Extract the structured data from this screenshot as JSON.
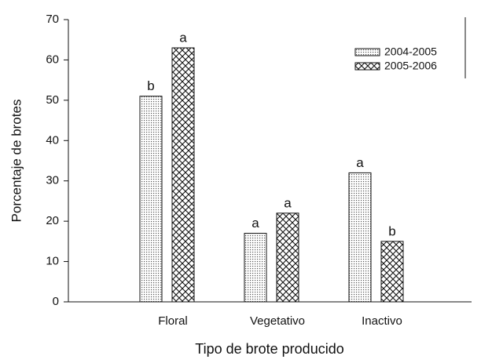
{
  "chart_data": {
    "type": "bar",
    "x_label": "Tipo de brote producido",
    "y_label": "Porcentaje de brotes",
    "categories": [
      "Floral",
      "Vegetativo",
      "Inactivo"
    ],
    "series": [
      {
        "name": "2004-2005",
        "pattern": "dots",
        "values": [
          51,
          17,
          32
        ],
        "letters": [
          "b",
          "a",
          "a"
        ]
      },
      {
        "name": "2005-2006",
        "pattern": "crosshatch",
        "values": [
          63,
          22,
          15
        ],
        "letters": [
          "a",
          "a",
          "b"
        ]
      }
    ],
    "ylim": [
      0,
      70
    ],
    "yticks": [
      0,
      10,
      20,
      30,
      40,
      50,
      60,
      70
    ],
    "legend": "upper right"
  }
}
